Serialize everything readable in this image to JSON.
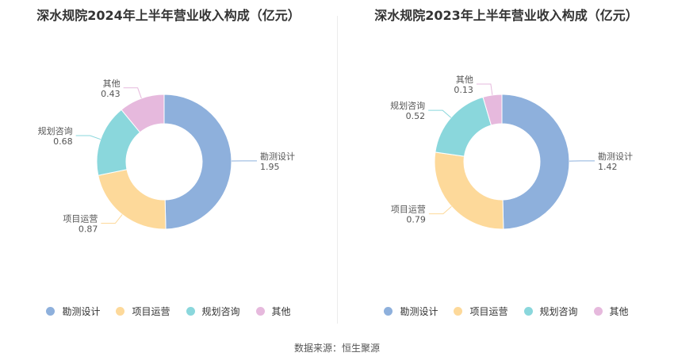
{
  "colors": {
    "勘测设计": "#8eb0dc",
    "项目运营": "#fdd99a",
    "规划咨询": "#8ad7dc",
    "其他": "#e6b9dd"
  },
  "legend": [
    {
      "label": "勘测设计",
      "color": "#8eb0dc"
    },
    {
      "label": "项目运营",
      "color": "#fdd99a"
    },
    {
      "label": "规划咨询",
      "color": "#8ad7dc"
    },
    {
      "label": "其他",
      "color": "#e6b9dd"
    }
  ],
  "source": "数据来源：恒生聚源",
  "chart_data": [
    {
      "type": "pie",
      "title": "深水规院2024年上半年营业收入构成（亿元）",
      "categories": [
        "勘测设计",
        "项目运营",
        "规划咨询",
        "其他"
      ],
      "values": [
        1.95,
        0.87,
        0.68,
        0.43
      ],
      "value_labels": [
        "1.95",
        "0.87",
        "0.68",
        "0.43"
      ],
      "legend_position": "bottom",
      "donut": true
    },
    {
      "type": "pie",
      "title": "深水规院2023年上半年营业收入构成（亿元）",
      "categories": [
        "勘测设计",
        "项目运营",
        "规划咨询",
        "其他"
      ],
      "values": [
        1.42,
        0.79,
        0.52,
        0.13
      ],
      "value_labels": [
        "1.42",
        "0.79",
        "0.52",
        "0.13"
      ],
      "legend_position": "bottom",
      "donut": true
    }
  ]
}
